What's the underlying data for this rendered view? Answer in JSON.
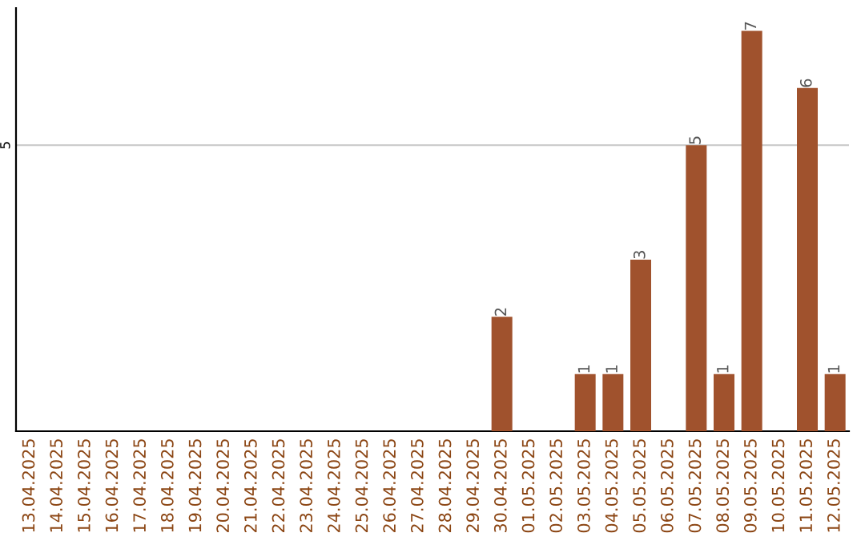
{
  "chart_data": {
    "type": "bar",
    "categories": [
      "13.04.2025",
      "14.04.2025",
      "15.04.2025",
      "16.04.2025",
      "17.04.2025",
      "18.04.2025",
      "19.04.2025",
      "20.04.2025",
      "21.04.2025",
      "22.04.2025",
      "23.04.2025",
      "24.04.2025",
      "25.04.2025",
      "26.04.2025",
      "27.04.2025",
      "28.04.2025",
      "29.04.2025",
      "30.04.2025",
      "01.05.2025",
      "02.05.2025",
      "03.05.2025",
      "04.05.2025",
      "05.05.2025",
      "06.05.2025",
      "07.05.2025",
      "08.05.2025",
      "09.05.2025",
      "10.05.2025",
      "11.05.2025",
      "12.05.2025"
    ],
    "values": [
      null,
      null,
      null,
      null,
      null,
      null,
      null,
      null,
      null,
      null,
      null,
      null,
      null,
      null,
      null,
      null,
      null,
      2,
      null,
      null,
      1,
      1,
      3,
      null,
      5,
      1,
      7,
      null,
      6,
      1
    ],
    "value_labels": [
      null,
      null,
      null,
      null,
      null,
      null,
      null,
      null,
      null,
      null,
      null,
      null,
      null,
      null,
      null,
      null,
      null,
      "2",
      null,
      null,
      "1",
      "1",
      "3",
      null,
      "5",
      "1",
      "7",
      null,
      "6",
      "1"
    ],
    "color": "#a0522d",
    "ref_lines": [
      {
        "axis": "y",
        "value": 5,
        "label": "5",
        "color": "#cccccc"
      }
    ]
  }
}
